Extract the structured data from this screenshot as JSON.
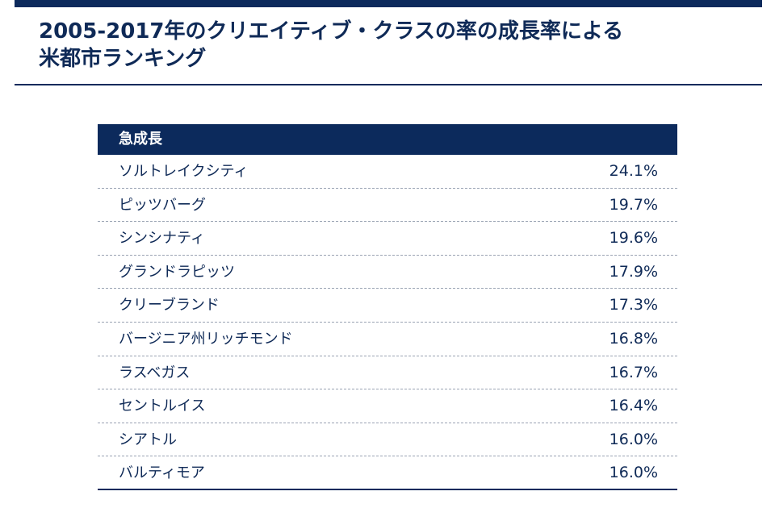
{
  "title": {
    "line1": "2005-2017年のクリエイティブ・クラスの率の成長率による",
    "line2": "米都市ランキング"
  },
  "colors": {
    "navy": "#0c2a5c",
    "text": "#0f2a57",
    "white": "#ffffff"
  },
  "chart_data": {
    "type": "table",
    "columns": [
      "急成長",
      ""
    ],
    "rows": [
      {
        "city": "ソルトレイクシティ",
        "value": "24.1%"
      },
      {
        "city": "ピッツバーグ",
        "value": "19.7%"
      },
      {
        "city": "シンシナティ",
        "value": "19.6%"
      },
      {
        "city": "グランドラピッツ",
        "value": "17.9%"
      },
      {
        "city": "クリーブランド",
        "value": "17.3%"
      },
      {
        "city": "バージニア州リッチモンド",
        "value": "16.8%"
      },
      {
        "city": "ラスベガス",
        "value": "16.7%"
      },
      {
        "city": "セントルイス",
        "value": "16.4%"
      },
      {
        "city": "シアトル",
        "value": "16.0%"
      },
      {
        "city": "バルティモア",
        "value": "16.0%"
      }
    ]
  }
}
